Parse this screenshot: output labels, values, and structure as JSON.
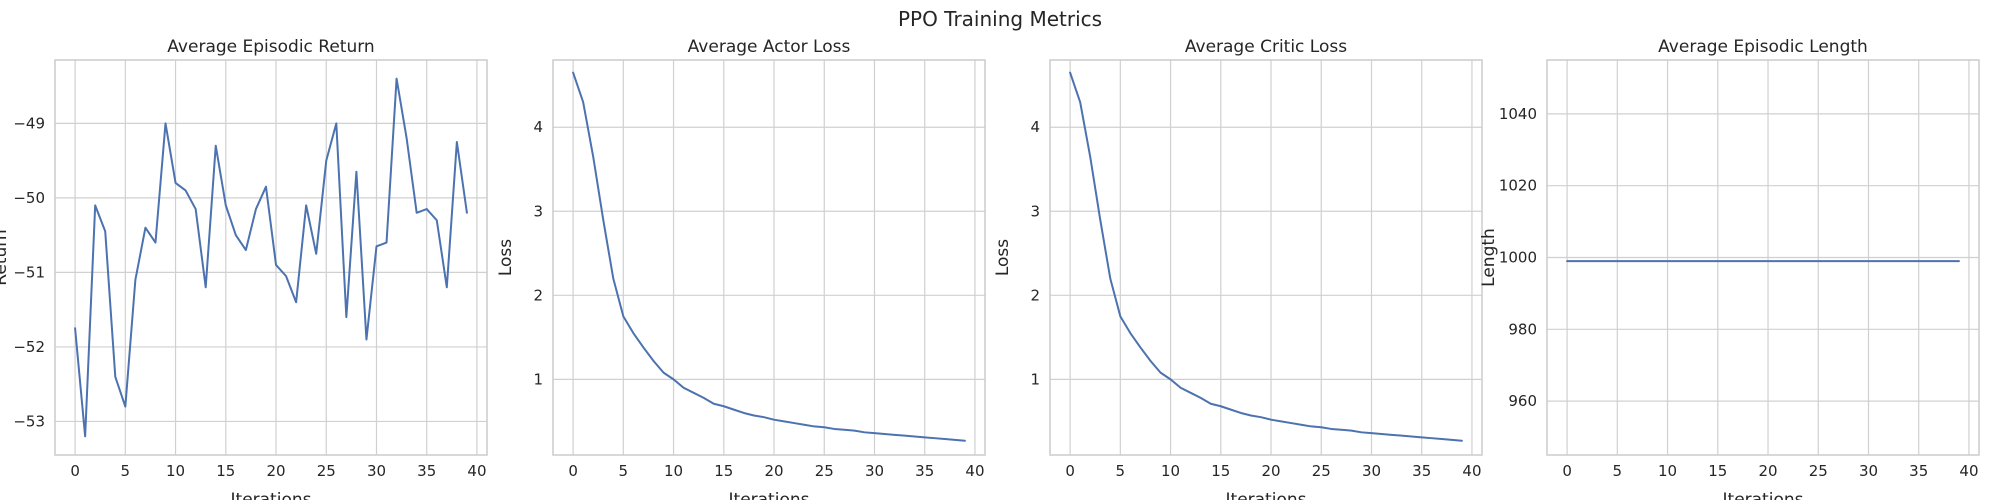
{
  "figure": {
    "title": "PPO Training Metrics"
  },
  "colors": {
    "line": "#4c72b0",
    "grid": "#d0d0d0",
    "frame": "#cccccc",
    "text": "#262626"
  },
  "chart_data": [
    {
      "type": "line",
      "title": "Average Episodic Return",
      "xlabel": "Iterations",
      "ylabel": "Return",
      "xlim": [
        -2,
        41
      ],
      "ylim": [
        -53.45,
        -48.15
      ],
      "xticks": [
        0,
        5,
        10,
        15,
        20,
        25,
        30,
        35,
        40
      ],
      "yticks": [
        -53,
        -52,
        -51,
        -50,
        -49
      ],
      "yticklabels": [
        "−53",
        "−52",
        "−51",
        "−50",
        "−49"
      ],
      "grid": true,
      "series": [
        {
          "x": [
            0,
            1,
            2,
            3,
            4,
            5,
            6,
            7,
            8,
            9,
            10,
            11,
            12,
            13,
            14,
            15,
            16,
            17,
            18,
            19,
            20,
            21,
            22,
            23,
            24,
            25,
            26,
            27,
            28,
            29,
            30,
            31,
            32,
            33,
            34,
            35,
            36,
            37,
            38,
            39
          ],
          "y": [
            -51.75,
            -53.2,
            -50.1,
            -50.45,
            -52.4,
            -52.8,
            -51.1,
            -50.4,
            -50.6,
            -49.0,
            -49.8,
            -49.9,
            -50.15,
            -51.2,
            -49.3,
            -50.1,
            -50.5,
            -50.7,
            -50.15,
            -49.85,
            -50.9,
            -51.05,
            -51.4,
            -50.1,
            -50.75,
            -49.5,
            -49.0,
            -51.6,
            -49.65,
            -51.9,
            -50.65,
            -50.6,
            -48.4,
            -49.2,
            -50.2,
            -50.15,
            -50.3,
            -51.2,
            -49.25,
            -50.2
          ]
        }
      ]
    },
    {
      "type": "line",
      "title": "Average Actor Loss",
      "xlabel": "Iterations",
      "ylabel": "Loss",
      "xlim": [
        -2,
        41
      ],
      "ylim": [
        0.1,
        4.8
      ],
      "xticks": [
        0,
        5,
        10,
        15,
        20,
        25,
        30,
        35,
        40
      ],
      "yticks": [
        1,
        2,
        3,
        4
      ],
      "yticklabels": [
        "1",
        "2",
        "3",
        "4"
      ],
      "grid": true,
      "series": [
        {
          "x": [
            0,
            1,
            2,
            3,
            4,
            5,
            6,
            7,
            8,
            9,
            10,
            11,
            12,
            13,
            14,
            15,
            16,
            17,
            18,
            19,
            20,
            21,
            22,
            23,
            24,
            25,
            26,
            27,
            28,
            29,
            30,
            31,
            32,
            33,
            34,
            35,
            36,
            37,
            38,
            39
          ],
          "y": [
            4.65,
            4.3,
            3.65,
            2.9,
            2.2,
            1.75,
            1.55,
            1.38,
            1.22,
            1.08,
            1.0,
            0.9,
            0.84,
            0.78,
            0.71,
            0.68,
            0.64,
            0.6,
            0.57,
            0.55,
            0.52,
            0.5,
            0.48,
            0.46,
            0.44,
            0.43,
            0.41,
            0.4,
            0.39,
            0.37,
            0.36,
            0.35,
            0.34,
            0.33,
            0.32,
            0.31,
            0.3,
            0.29,
            0.28,
            0.27
          ]
        }
      ]
    },
    {
      "type": "line",
      "title": "Average Critic Loss",
      "xlabel": "Iterations",
      "ylabel": "Loss",
      "xlim": [
        -2,
        41
      ],
      "ylim": [
        0.1,
        4.8
      ],
      "xticks": [
        0,
        5,
        10,
        15,
        20,
        25,
        30,
        35,
        40
      ],
      "yticks": [
        1,
        2,
        3,
        4
      ],
      "yticklabels": [
        "1",
        "2",
        "3",
        "4"
      ],
      "grid": true,
      "series": [
        {
          "x": [
            0,
            1,
            2,
            3,
            4,
            5,
            6,
            7,
            8,
            9,
            10,
            11,
            12,
            13,
            14,
            15,
            16,
            17,
            18,
            19,
            20,
            21,
            22,
            23,
            24,
            25,
            26,
            27,
            28,
            29,
            30,
            31,
            32,
            33,
            34,
            35,
            36,
            37,
            38,
            39
          ],
          "y": [
            4.65,
            4.3,
            3.65,
            2.9,
            2.2,
            1.75,
            1.55,
            1.38,
            1.22,
            1.08,
            1.0,
            0.9,
            0.84,
            0.78,
            0.71,
            0.68,
            0.64,
            0.6,
            0.57,
            0.55,
            0.52,
            0.5,
            0.48,
            0.46,
            0.44,
            0.43,
            0.41,
            0.4,
            0.39,
            0.37,
            0.36,
            0.35,
            0.34,
            0.33,
            0.32,
            0.31,
            0.3,
            0.29,
            0.28,
            0.27
          ]
        }
      ]
    },
    {
      "type": "line",
      "title": "Average Episodic Length",
      "xlabel": "Iterations",
      "ylabel": "Length",
      "xlim": [
        -2,
        41
      ],
      "ylim": [
        945,
        1055
      ],
      "xticks": [
        0,
        5,
        10,
        15,
        20,
        25,
        30,
        35,
        40
      ],
      "yticks": [
        960,
        980,
        1000,
        1020,
        1040
      ],
      "yticklabels": [
        "960",
        "980",
        "1000",
        "1020",
        "1040"
      ],
      "grid": true,
      "series": [
        {
          "x": [
            0,
            1,
            2,
            3,
            4,
            5,
            6,
            7,
            8,
            9,
            10,
            11,
            12,
            13,
            14,
            15,
            16,
            17,
            18,
            19,
            20,
            21,
            22,
            23,
            24,
            25,
            26,
            27,
            28,
            29,
            30,
            31,
            32,
            33,
            34,
            35,
            36,
            37,
            38,
            39
          ],
          "y": [
            999,
            999,
            999,
            999,
            999,
            999,
            999,
            999,
            999,
            999,
            999,
            999,
            999,
            999,
            999,
            999,
            999,
            999,
            999,
            999,
            999,
            999,
            999,
            999,
            999,
            999,
            999,
            999,
            999,
            999,
            999,
            999,
            999,
            999,
            999,
            999,
            999,
            999,
            999,
            999
          ]
        }
      ]
    }
  ]
}
